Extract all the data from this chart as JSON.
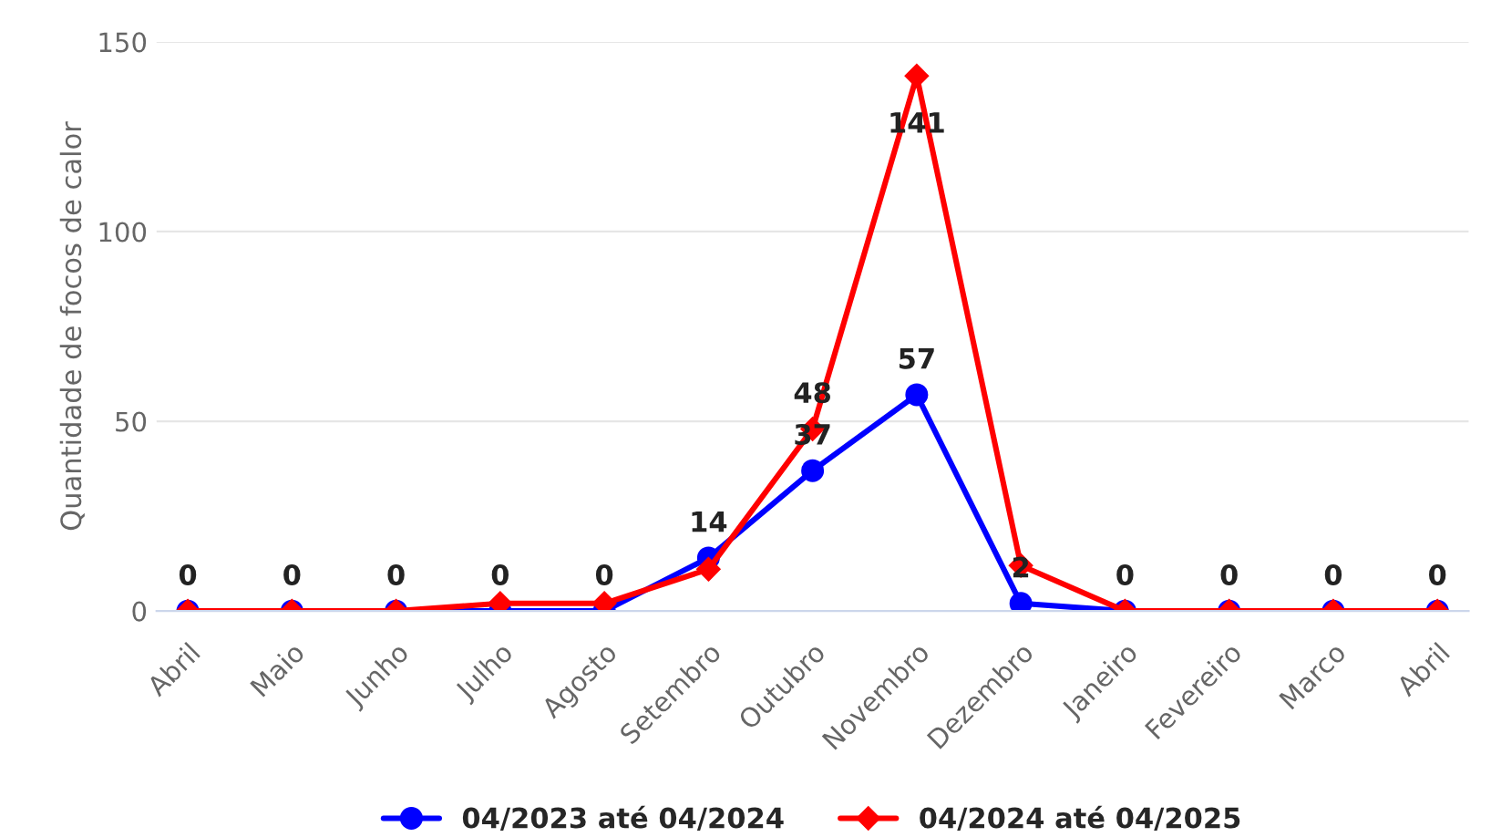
{
  "chart_data": {
    "type": "line",
    "ylabel": "Quantidade de focos de calor",
    "categories": [
      "Abril",
      "Maio",
      "Junho",
      "Julho",
      "Agosto",
      "Setembro",
      "Outubro",
      "Novembro",
      "Dezembro",
      "Janeiro",
      "Fevereiro",
      "Marco",
      "Abril"
    ],
    "series": [
      {
        "name": "04/2023 até 04/2024",
        "color": "#0000ff",
        "marker": "circle",
        "values": [
          0,
          0,
          0,
          0,
          0,
          14,
          37,
          57,
          2,
          0,
          0,
          0,
          0
        ],
        "value_labels": [
          "0",
          "0",
          "0",
          "0",
          "0",
          "14",
          "37",
          "57",
          "2",
          "0",
          "0",
          "0",
          "0"
        ]
      },
      {
        "name": "04/2024 até 04/2025",
        "color": "#ff0000",
        "marker": "diamond",
        "values": [
          0,
          0,
          0,
          2,
          2,
          11,
          48,
          141,
          12,
          0,
          0,
          0,
          0
        ],
        "value_labels": [
          null,
          null,
          null,
          null,
          null,
          null,
          "48",
          "141",
          null,
          null,
          null,
          null,
          null
        ]
      }
    ],
    "ylim": [
      0,
      150
    ],
    "yticks": [
      0,
      50,
      100,
      150
    ],
    "grid": "y",
    "legend": "bottom",
    "line_style": "solid"
  }
}
